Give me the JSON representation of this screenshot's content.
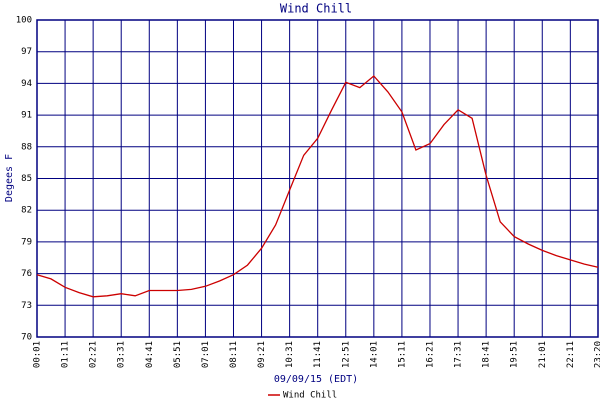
{
  "chart_data": {
    "type": "line",
    "title": "Wind Chill",
    "x_label": "09/09/15 (EDT)",
    "y_label": "Degees F",
    "x": [
      "00:01",
      "00:36",
      "01:11",
      "01:46",
      "02:21",
      "02:56",
      "03:31",
      "04:06",
      "04:41",
      "05:16",
      "05:51",
      "06:26",
      "07:01",
      "07:36",
      "08:11",
      "08:46",
      "09:21",
      "09:56",
      "10:31",
      "11:06",
      "11:41",
      "12:16",
      "12:51",
      "13:26",
      "14:01",
      "14:36",
      "15:11",
      "15:46",
      "16:21",
      "16:56",
      "17:31",
      "18:06",
      "18:41",
      "19:16",
      "19:51",
      "20:26",
      "21:01",
      "21:36",
      "22:11",
      "22:46",
      "23:20"
    ],
    "series": [
      {
        "name": "Wind Chill",
        "color": "#cc0000",
        "values": [
          75.9,
          75.5,
          74.7,
          74.2,
          73.8,
          73.9,
          74.1,
          73.9,
          74.4,
          74.4,
          74.4,
          74.5,
          74.8,
          75.3,
          75.9,
          76.8,
          78.4,
          80.6,
          83.9,
          87.2,
          88.8,
          91.5,
          94.1,
          93.6,
          94.7,
          93.2,
          91.3,
          87.7,
          88.3,
          90.1,
          91.5,
          90.7,
          85.3,
          80.9,
          79.5,
          78.8,
          78.2,
          77.7,
          77.3,
          76.9,
          76.6
        ]
      }
    ],
    "xlim": [
      "00:01",
      "23:20"
    ],
    "xticks": [
      "00:01",
      "01:11",
      "02:21",
      "03:31",
      "04:41",
      "05:51",
      "07:01",
      "08:11",
      "09:21",
      "10:31",
      "11:41",
      "12:51",
      "14:01",
      "15:11",
      "16:21",
      "17:31",
      "18:41",
      "19:51",
      "21:01",
      "22:11",
      "23:20"
    ],
    "ylim": [
      70,
      100
    ],
    "yticks": [
      70,
      73,
      76,
      79,
      82,
      85,
      88,
      91,
      94,
      97,
      100
    ],
    "grid": true,
    "grid_color": "#000080"
  }
}
